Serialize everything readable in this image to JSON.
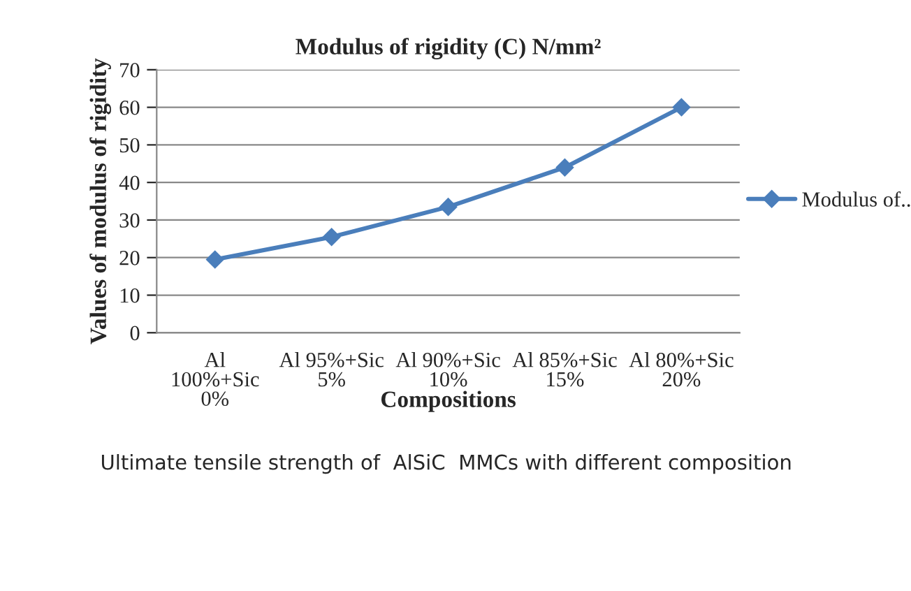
{
  "chart_data": {
    "type": "line",
    "title": "Modulus of rigidity (C) N/mm²",
    "xlabel": "Compositions",
    "ylabel": "Values of modulus of rigidity",
    "categories": [
      "Al\n100%+Sic\n0%",
      "Al 95%+Sic\n5%",
      "Al 90%+Sic\n10%",
      "Al 85%+Sic\n15%",
      "Al 80%+Sic\n20%"
    ],
    "series": [
      {
        "name": "Modulus of..",
        "color": "#4a7ebb",
        "values": [
          19.5,
          25.5,
          33.5,
          44,
          60
        ]
      }
    ],
    "ylim": [
      0,
      70
    ],
    "yticks": [
      0,
      10,
      20,
      30,
      40,
      50,
      60,
      70
    ],
    "grid": "y",
    "legend": "right",
    "marker": "diamond",
    "line_style": "solid",
    "annotations": [
      "Ultimate tensile strength of  AlSiC  MMCs with different composition"
    ]
  }
}
